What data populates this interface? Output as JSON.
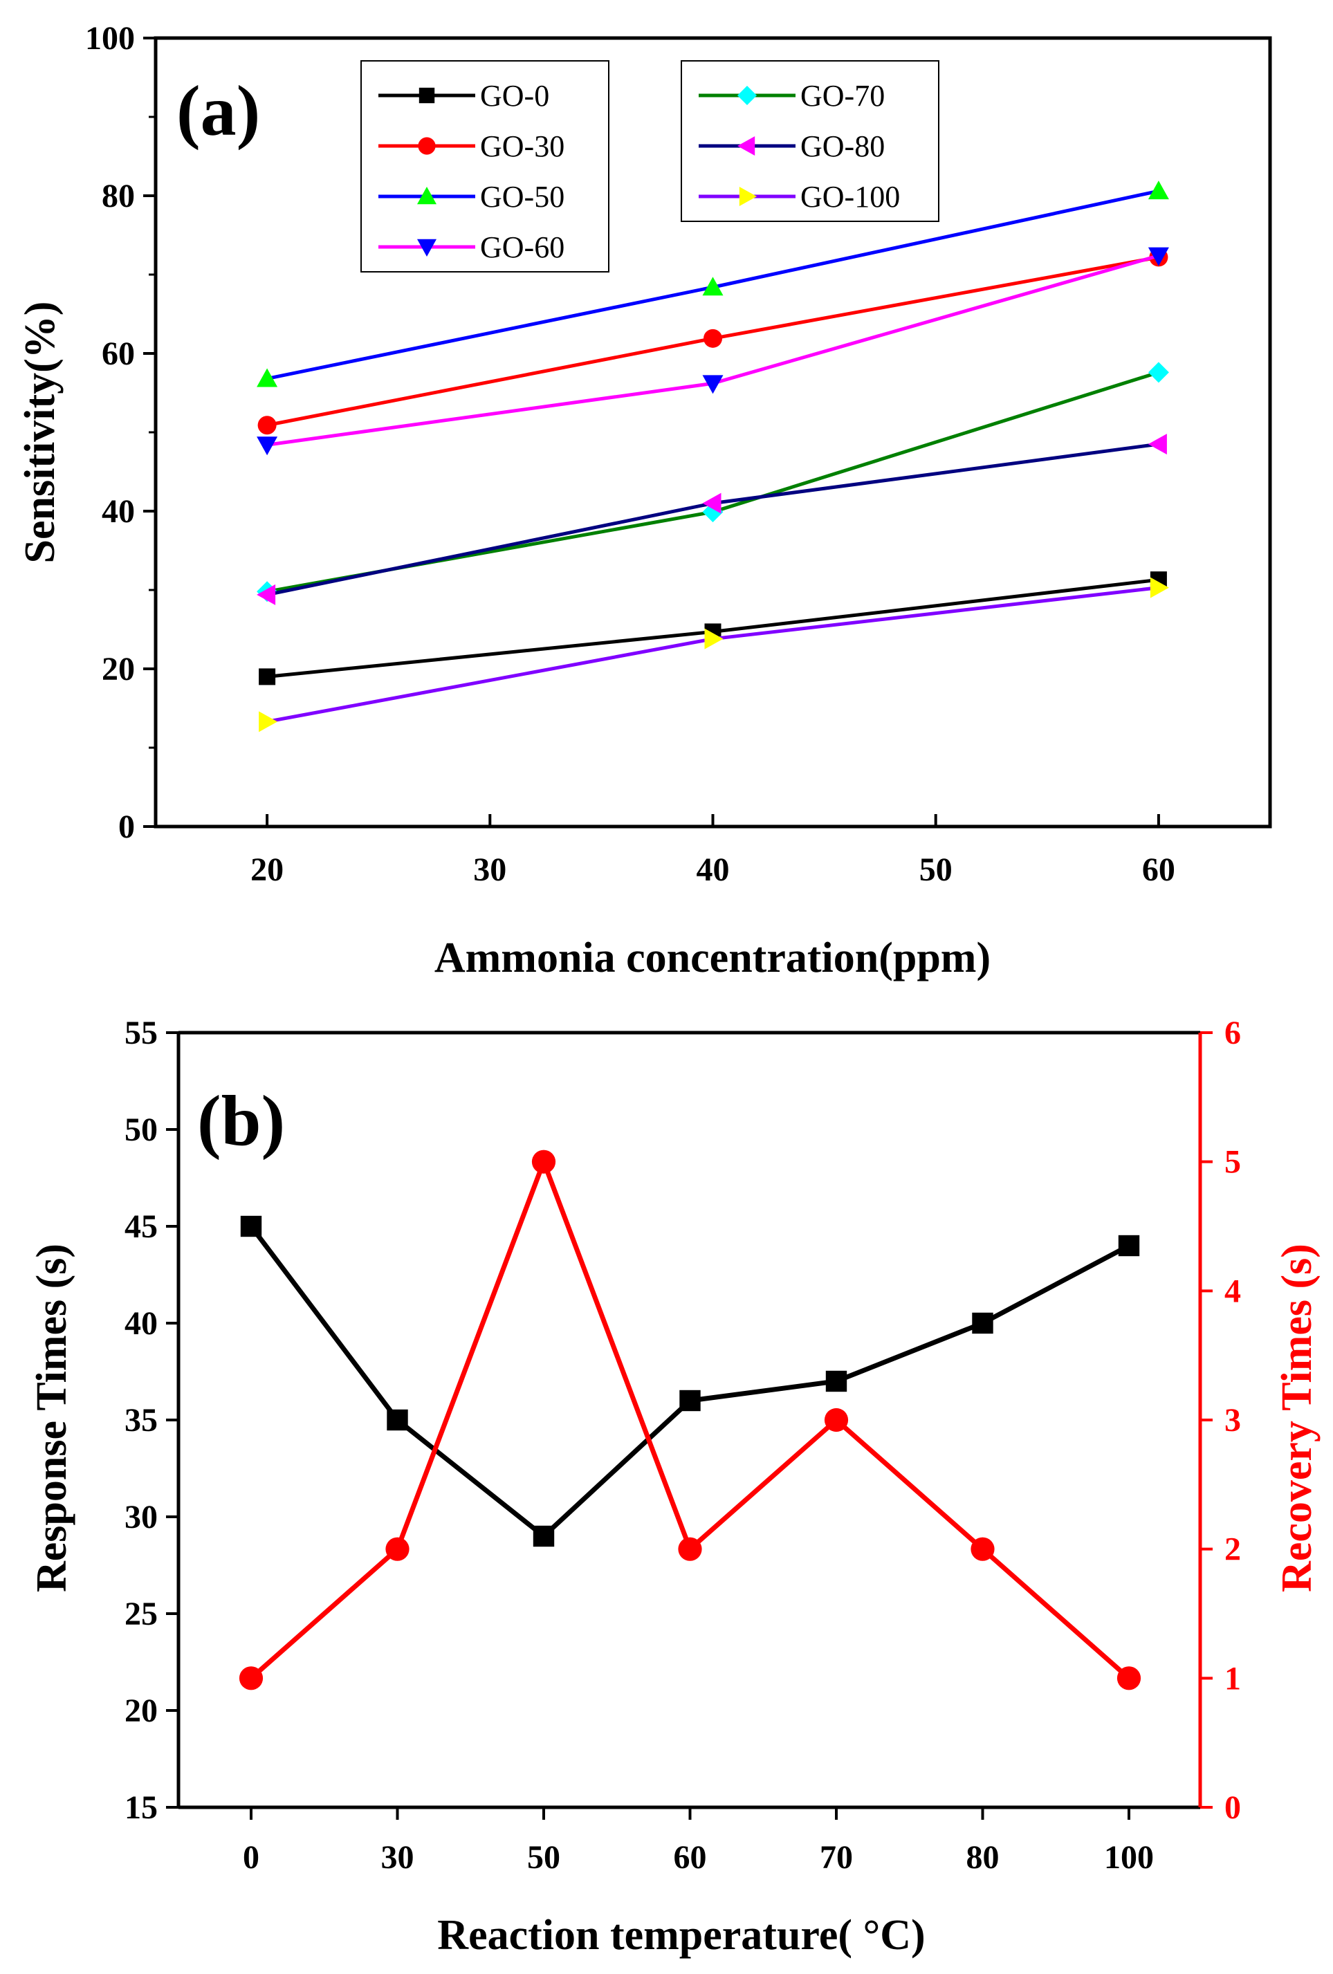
{
  "chart_data": [
    {
      "type": "line",
      "panel_label": "(a)",
      "xlabel": "Ammonia concentration(ppm)",
      "ylabel": "Sensitivity(%)",
      "xlim": [
        15,
        65
      ],
      "ylim": [
        0,
        100
      ],
      "xticks": [
        20,
        30,
        40,
        50,
        60
      ],
      "yticks": [
        0,
        20,
        40,
        60,
        80,
        100
      ],
      "x": [
        20,
        40,
        60
      ],
      "legend_position": "top-left",
      "series": [
        {
          "name": "GO-0",
          "values": [
            19,
            24.7,
            31.3
          ],
          "line_color": "#000000",
          "marker_color": "#000000",
          "marker": "square"
        },
        {
          "name": "GO-30",
          "values": [
            50.9,
            61.9,
            72.2
          ],
          "line_color": "#ff0000",
          "marker_color": "#ff0000",
          "marker": "circle"
        },
        {
          "name": "GO-50",
          "values": [
            56.8,
            68.4,
            80.6
          ],
          "line_color": "#0000ff",
          "marker_color": "#00ff00",
          "marker": "triangle-up"
        },
        {
          "name": "GO-60",
          "values": [
            48.4,
            56.2,
            72.4
          ],
          "line_color": "#ff00ff",
          "marker_color": "#0000ff",
          "marker": "triangle-down"
        },
        {
          "name": "GO-70",
          "values": [
            29.8,
            39.9,
            57.6
          ],
          "line_color": "#008000",
          "marker_color": "#00ffff",
          "marker": "diamond"
        },
        {
          "name": "GO-80",
          "values": [
            29.4,
            41,
            48.5
          ],
          "line_color": "#000080",
          "marker_color": "#ff00ff",
          "marker": "triangle-left"
        },
        {
          "name": "GO-100",
          "values": [
            13.3,
            23.8,
            30.3
          ],
          "line_color": "#8000ff",
          "marker_color": "#ffff00",
          "marker": "triangle-right"
        }
      ]
    },
    {
      "type": "line",
      "panel_label": "(b)",
      "xlabel": "Reaction temperature( °C)",
      "ylabel": "Response Times (s)",
      "y2label": "Recovery Times (s)",
      "categories": [
        "0",
        "30",
        "50",
        "60",
        "70",
        "80",
        "100"
      ],
      "ylim": [
        15,
        55
      ],
      "yticks": [
        15,
        20,
        25,
        30,
        35,
        40,
        45,
        50,
        55
      ],
      "y2lim": [
        0,
        6
      ],
      "y2ticks": [
        0,
        1,
        2,
        3,
        4,
        5,
        6
      ],
      "series": [
        {
          "name": "Response Times",
          "axis": "left",
          "values": [
            45,
            35,
            29,
            36,
            37,
            40,
            44
          ],
          "color": "#000000",
          "marker": "square"
        },
        {
          "name": "Recovery Times",
          "axis": "right",
          "values": [
            1,
            2,
            5,
            2,
            3,
            2,
            1
          ],
          "color": "#ff0000",
          "marker": "circle"
        }
      ]
    }
  ]
}
